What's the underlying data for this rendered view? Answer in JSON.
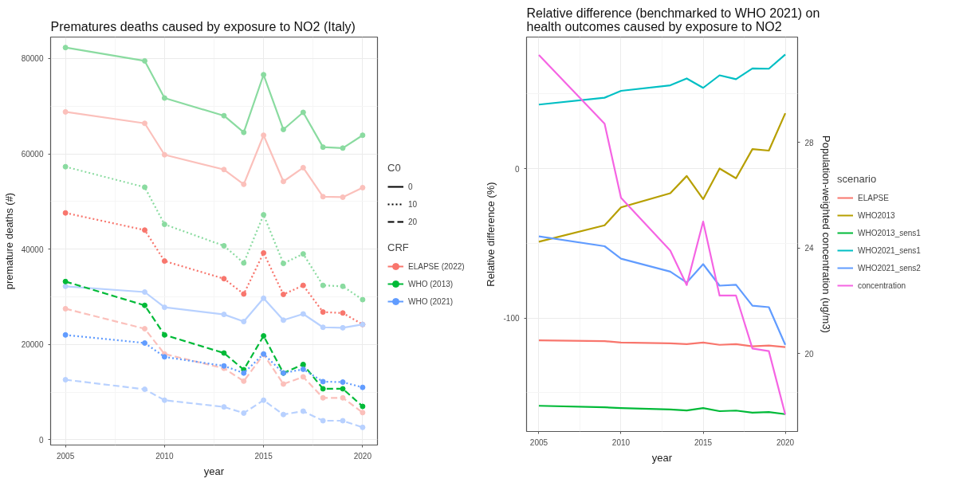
{
  "chart_data": [
    {
      "type": "line",
      "title": "Prematures deaths caused by exposure to NO2 (Italy)",
      "xlabel": "year",
      "ylabel": "premature deaths (#)",
      "x": [
        2005,
        2009,
        2010,
        2013,
        2014,
        2015,
        2016,
        2017,
        2018,
        2019,
        2020
      ],
      "xlim": [
        2004.25,
        2020.75
      ],
      "xticks": [
        2005,
        2010,
        2015,
        2020
      ],
      "ylim": [
        -1100,
        84500
      ],
      "yticks": [
        0,
        20000,
        40000,
        60000,
        80000
      ],
      "grid": true,
      "marker": "circle",
      "legend": "right",
      "legend_title": "CRF",
      "annotations": [
        "C0",
        "0",
        "10",
        "20"
      ],
      "series": [
        {
          "color": "#8adba0",
          "line_style": "solid",
          "values": [
            82300,
            79500,
            71700,
            68000,
            64500,
            76600,
            65100,
            68700,
            61400,
            61200,
            63900
          ]
        },
        {
          "color": "#fbc0bb",
          "line_style": "solid",
          "values": [
            68800,
            66400,
            59800,
            56700,
            53600,
            63900,
            54200,
            57100,
            51000,
            50900,
            52900
          ]
        },
        {
          "color": "#8adba0",
          "line_style": "dotted",
          "values": [
            57300,
            53000,
            45200,
            40700,
            37100,
            47200,
            37000,
            39000,
            32400,
            32200,
            29400
          ]
        },
        {
          "name": "ELAPSE (2022)",
          "color": "#f8766d",
          "line_style": "dotted",
          "values": [
            47600,
            44000,
            37500,
            33800,
            30600,
            39200,
            30500,
            32400,
            26800,
            26600,
            24200
          ]
        },
        {
          "color": "#b8d1ff",
          "line_style": "solid",
          "values": [
            32200,
            31000,
            27800,
            26300,
            24800,
            29700,
            25100,
            26400,
            23600,
            23500,
            24200
          ]
        },
        {
          "name": "WHO (2013)",
          "color": "#00ba38",
          "line_style": "dashed",
          "values": [
            33200,
            28200,
            22000,
            18200,
            14700,
            21800,
            14000,
            15800,
            10700,
            10700,
            7000
          ]
        },
        {
          "color": "#fbc0bb",
          "line_style": "dashed",
          "values": [
            27500,
            23300,
            18000,
            15000,
            12300,
            17900,
            11700,
            13200,
            8800,
            8800,
            5700
          ]
        },
        {
          "name": "WHO (2021)",
          "color": "#619cff",
          "line_style": "dotted",
          "values": [
            22000,
            20300,
            17400,
            15500,
            14000,
            18000,
            14000,
            14800,
            12200,
            12100,
            11000
          ]
        },
        {
          "color": "#b8d1ff",
          "line_style": "dashed",
          "values": [
            12600,
            10600,
            8300,
            6900,
            5600,
            8300,
            5300,
            6000,
            4000,
            4000,
            2600
          ]
        }
      ]
    },
    {
      "type": "line",
      "title": "Relative difference (benchmarked to WHO 2021) on health outcomes caused by exposure to NO2",
      "xlabel": "year",
      "ylabel": "Relative difference (%)",
      "y2label": "Population-weighted concentration (ug/m3)",
      "x": [
        2005,
        2009,
        2010,
        2013,
        2014,
        2015,
        2016,
        2017,
        2018,
        2019,
        2020
      ],
      "xlim": [
        2004.25,
        2020.75
      ],
      "xticks": [
        2005,
        2010,
        2015,
        2020
      ],
      "ylim": [
        -176,
        88
      ],
      "yticks": [
        -100,
        0
      ],
      "y2lim": [
        17.06,
        31.98
      ],
      "y2ticks": [
        20,
        24,
        28
      ],
      "grid": true,
      "legend": "right",
      "legend_title": "scenario",
      "series": [
        {
          "name": "ELAPSE",
          "color": "#f8766d",
          "values": [
            -115,
            -115.5,
            -116.5,
            -117,
            -117.5,
            -116.5,
            -118,
            -117.5,
            -119,
            -118.5,
            -119.5
          ]
        },
        {
          "name": "WHO2013",
          "color": "#b79f00",
          "values": [
            -49,
            -38,
            -26,
            -16.5,
            -5,
            -20.5,
            0,
            -6.5,
            13,
            12,
            37
          ]
        },
        {
          "name": "WHO2013_sens1",
          "color": "#00ba38",
          "values": [
            -158.8,
            -159.8,
            -160.3,
            -161.3,
            -161.9,
            -160.3,
            -162.4,
            -162,
            -163.4,
            -163,
            -164.4
          ]
        },
        {
          "name": "WHO2021_sens1",
          "color": "#00bfc4",
          "values": [
            42.8,
            47.4,
            52,
            55.7,
            60.3,
            54,
            62.4,
            59.8,
            67,
            66.8,
            76.3
          ]
        },
        {
          "name": "WHO2021_sens2",
          "color": "#619cff",
          "values": [
            -45.4,
            -52,
            -60.3,
            -69,
            -76.3,
            -64,
            -78.4,
            -77.8,
            -91.8,
            -92.8,
            -118
          ]
        },
        {
          "name": "concentration",
          "color": "#f564e3",
          "axis": "y2",
          "values": [
            31.3,
            28.7,
            25.9,
            23.9,
            22.6,
            25.0,
            22.2,
            22.2,
            20.2,
            20.1,
            17.7
          ]
        }
      ]
    }
  ]
}
